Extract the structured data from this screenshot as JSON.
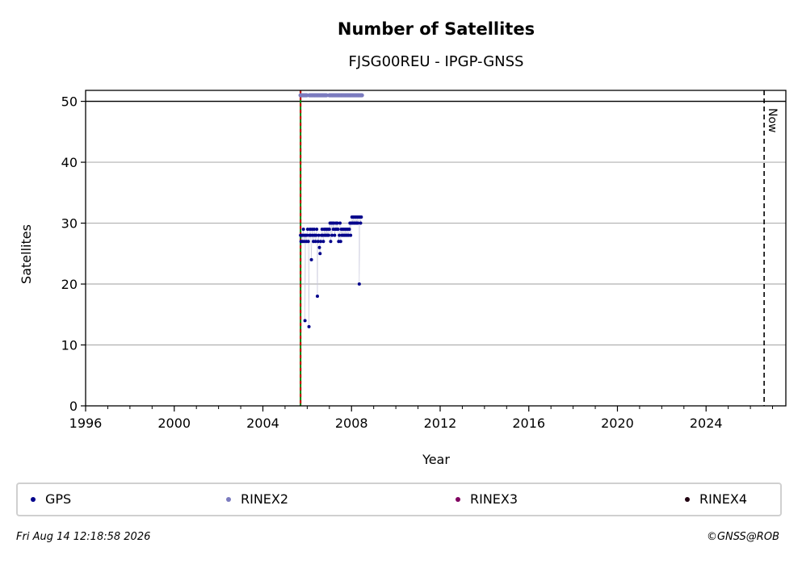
{
  "chart_data": {
    "type": "scatter",
    "title": "Number of Satellites",
    "subtitle": "FJSG00REU - IPGP-GNSS",
    "xlabel": "Year",
    "ylabel": "Satellites",
    "xlim": [
      1996,
      2027.6
    ],
    "ylim": [
      0,
      51.8
    ],
    "x_ticks": [
      1996,
      2000,
      2004,
      2008,
      2012,
      2016,
      2020,
      2024
    ],
    "y_ticks": [
      0,
      10,
      20,
      30,
      40,
      50
    ],
    "grid": "horizontal",
    "hline": 50,
    "vlines": [
      {
        "x": 2005.7,
        "color": "#008000",
        "style": "solid"
      },
      {
        "x": 2005.7,
        "color": "#cc0000",
        "style": "dashed"
      }
    ],
    "now_line": {
      "x": 2026.62,
      "label": "Now"
    },
    "colors": {
      "GPS": "#00008b",
      "RINEX2": "#7b7bbf",
      "RINEX3": "#800060",
      "RINEX4": "#200010"
    },
    "series": [
      {
        "name": "GPS",
        "color": "#00008b",
        "points": [
          [
            2005.7,
            28
          ],
          [
            2005.72,
            27
          ],
          [
            2005.75,
            28
          ],
          [
            2005.78,
            27
          ],
          [
            2005.8,
            28
          ],
          [
            2005.83,
            29
          ],
          [
            2005.86,
            27
          ],
          [
            2005.88,
            28
          ],
          [
            2005.9,
            14
          ],
          [
            2005.93,
            28
          ],
          [
            2005.96,
            27
          ],
          [
            2005.99,
            28
          ],
          [
            2006.02,
            29
          ],
          [
            2006.05,
            27
          ],
          [
            2006.08,
            13
          ],
          [
            2006.1,
            28
          ],
          [
            2006.13,
            29
          ],
          [
            2006.16,
            28
          ],
          [
            2006.19,
            24
          ],
          [
            2006.22,
            29
          ],
          [
            2006.25,
            28
          ],
          [
            2006.28,
            27
          ],
          [
            2006.31,
            29
          ],
          [
            2006.34,
            28
          ],
          [
            2006.37,
            27
          ],
          [
            2006.4,
            28
          ],
          [
            2006.43,
            29
          ],
          [
            2006.46,
            18
          ],
          [
            2006.49,
            27
          ],
          [
            2006.52,
            28
          ],
          [
            2006.55,
            26
          ],
          [
            2006.58,
            25
          ],
          [
            2006.61,
            27
          ],
          [
            2006.64,
            28
          ],
          [
            2006.67,
            29
          ],
          [
            2006.7,
            28
          ],
          [
            2006.73,
            27
          ],
          [
            2006.76,
            29
          ],
          [
            2006.79,
            28
          ],
          [
            2006.82,
            29
          ],
          [
            2006.85,
            28
          ],
          [
            2006.88,
            29
          ],
          [
            2006.91,
            28
          ],
          [
            2006.94,
            29
          ],
          [
            2006.97,
            28
          ],
          [
            2007.0,
            29
          ],
          [
            2007.03,
            30
          ],
          [
            2007.06,
            27
          ],
          [
            2007.09,
            30
          ],
          [
            2007.12,
            28
          ],
          [
            2007.15,
            30
          ],
          [
            2007.18,
            29
          ],
          [
            2007.21,
            30
          ],
          [
            2007.24,
            28
          ],
          [
            2007.27,
            29
          ],
          [
            2007.3,
            30
          ],
          [
            2007.33,
            29
          ],
          [
            2007.36,
            30
          ],
          [
            2007.39,
            29
          ],
          [
            2007.42,
            27
          ],
          [
            2007.45,
            28
          ],
          [
            2007.48,
            30
          ],
          [
            2007.51,
            27
          ],
          [
            2007.54,
            29
          ],
          [
            2007.57,
            28
          ],
          [
            2007.6,
            29
          ],
          [
            2007.63,
            28
          ],
          [
            2007.66,
            29
          ],
          [
            2007.69,
            28
          ],
          [
            2007.72,
            29
          ],
          [
            2007.75,
            28
          ],
          [
            2007.78,
            29
          ],
          [
            2007.81,
            28
          ],
          [
            2007.84,
            29
          ],
          [
            2007.87,
            28
          ],
          [
            2007.9,
            29
          ],
          [
            2007.93,
            30
          ],
          [
            2007.96,
            28
          ],
          [
            2007.99,
            30
          ],
          [
            2008.02,
            31
          ],
          [
            2008.05,
            30
          ],
          [
            2008.08,
            31
          ],
          [
            2008.11,
            30
          ],
          [
            2008.14,
            31
          ],
          [
            2008.17,
            30
          ],
          [
            2008.2,
            31
          ],
          [
            2008.23,
            30
          ],
          [
            2008.26,
            31
          ],
          [
            2008.29,
            30
          ],
          [
            2008.32,
            31
          ],
          [
            2008.35,
            20
          ],
          [
            2008.38,
            31
          ],
          [
            2008.41,
            30
          ],
          [
            2008.44,
            31
          ]
        ]
      },
      {
        "name": "RINEX2",
        "color": "#7b7bbf",
        "y": 51,
        "ranges": [
          [
            2005.7,
            2006.0
          ],
          [
            2006.1,
            2006.9
          ],
          [
            2007.0,
            2008.5
          ]
        ]
      },
      {
        "name": "RINEX3",
        "color": "#800060",
        "points": []
      },
      {
        "name": "RINEX4",
        "color": "#200010",
        "points": []
      }
    ]
  },
  "legend": [
    {
      "label": "GPS",
      "color": "#00008b"
    },
    {
      "label": "RINEX2",
      "color": "#7b7bbf"
    },
    {
      "label": "RINEX3",
      "color": "#800060"
    },
    {
      "label": "RINEX4",
      "color": "#200010"
    }
  ],
  "footer": {
    "timestamp": "Fri Aug 14 12:18:58 2026",
    "credit": "©GNSS@ROB"
  }
}
